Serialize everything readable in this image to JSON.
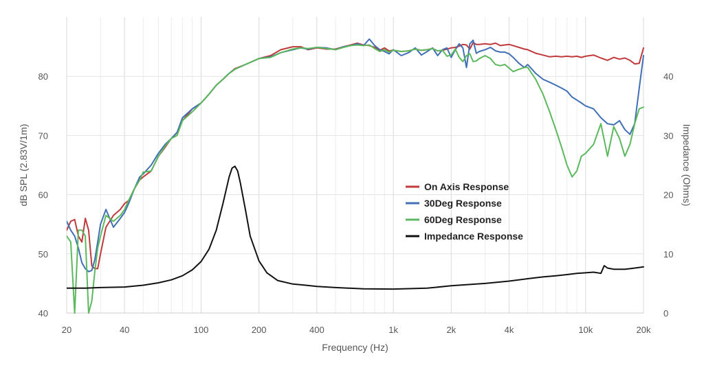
{
  "chart_data": {
    "type": "line",
    "xlabel": "Frequency (Hz)",
    "ylabel": "dB SPL (2.83V/1m)",
    "y2label": "Impedance (Ohms)",
    "xscale": "log",
    "xlim": [
      20,
      20000
    ],
    "ylim": [
      40,
      90
    ],
    "y2lim": [
      0,
      50
    ],
    "x_ticks": [
      20,
      40,
      100,
      200,
      400,
      1000,
      2000,
      4000,
      10000,
      20000
    ],
    "x_tick_labels": [
      "20",
      "40",
      "100",
      "200",
      "400",
      "1k",
      "2k",
      "4k",
      "10k",
      "20k"
    ],
    "y_ticks": [
      40,
      50,
      60,
      70,
      80
    ],
    "y2_ticks": [
      0,
      10,
      20,
      30,
      40
    ],
    "grid": true,
    "legend_position": "center-right",
    "series": [
      {
        "name": "On Axis Response",
        "axis": "left",
        "color": "#c0393b",
        "x": [
          20,
          21,
          22,
          23,
          24,
          25,
          26,
          27,
          28,
          29,
          30,
          32,
          35,
          38,
          40,
          42,
          45,
          48,
          50,
          55,
          60,
          65,
          70,
          75,
          80,
          90,
          100,
          110,
          120,
          130,
          140,
          150,
          170,
          200,
          230,
          260,
          300,
          330,
          360,
          400,
          450,
          500,
          550,
          600,
          650,
          700,
          750,
          800,
          850,
          900,
          950,
          1000,
          1100,
          1200,
          1300,
          1400,
          1500,
          1600,
          1700,
          1800,
          1900,
          2000,
          2100,
          2200,
          2300,
          2400,
          2500,
          2600,
          2700,
          2800,
          3000,
          3200,
          3400,
          3600,
          3800,
          4000,
          4200,
          4500,
          4800,
          5000,
          5500,
          6000,
          6500,
          7000,
          7500,
          8000,
          8500,
          9000,
          9500,
          10000,
          11000,
          12000,
          13000,
          14000,
          15000,
          16000,
          17000,
          18000,
          19000,
          20000
        ],
        "y": [
          54,
          55.5,
          55.8,
          53,
          52,
          56,
          54,
          48,
          47.5,
          47.5,
          50,
          54.5,
          56.5,
          57.5,
          58.5,
          59,
          61,
          62.5,
          63,
          64,
          66.5,
          68,
          69.5,
          70.5,
          72.5,
          74.5,
          75.5,
          77,
          78.5,
          79.5,
          80.5,
          81.3,
          82,
          83,
          83.5,
          84.5,
          85,
          85,
          84.5,
          84.8,
          84.6,
          84.6,
          85,
          85.3,
          85.6,
          85.3,
          85.2,
          84.9,
          84.4,
          84.8,
          84.3,
          84.4,
          84.2,
          84.3,
          84.6,
          84.4,
          84.5,
          84.7,
          84.3,
          84.4,
          84.6,
          84.8,
          84.9,
          85.1,
          85.4,
          85.3,
          84.6,
          85.7,
          85.4,
          85.4,
          85.5,
          85.4,
          85.6,
          85.2,
          85.3,
          85.4,
          85.2,
          84.9,
          84.6,
          84.5,
          83.9,
          83.6,
          83.3,
          83.4,
          83.3,
          83.4,
          83.3,
          83.4,
          83.2,
          83.4,
          83.6,
          83.1,
          82.7,
          83.2,
          82.9,
          83.1,
          82.7,
          82.1,
          82.2,
          84.8
        ]
      },
      {
        "name": "30Deg Response",
        "axis": "left",
        "color": "#3f6fb5",
        "x": [
          20,
          21,
          22,
          23,
          24,
          25,
          26,
          27,
          28,
          29,
          30,
          32,
          35,
          38,
          40,
          42,
          45,
          48,
          50,
          55,
          60,
          65,
          70,
          75,
          80,
          90,
          100,
          110,
          120,
          130,
          140,
          150,
          170,
          200,
          230,
          260,
          300,
          330,
          360,
          400,
          450,
          500,
          550,
          600,
          650,
          700,
          750,
          800,
          850,
          900,
          950,
          1000,
          1100,
          1200,
          1300,
          1400,
          1500,
          1600,
          1700,
          1800,
          1900,
          2000,
          2100,
          2200,
          2300,
          2400,
          2500,
          2600,
          2700,
          2800,
          3000,
          3200,
          3400,
          3600,
          3800,
          4000,
          4200,
          4500,
          4800,
          5000,
          5500,
          6000,
          6500,
          7000,
          7500,
          8000,
          8500,
          9000,
          9500,
          10000,
          11000,
          12000,
          13000,
          14000,
          15000,
          16000,
          17000,
          18000,
          19000,
          20000
        ],
        "y": [
          55.5,
          54,
          53,
          51,
          48.5,
          47.5,
          47,
          47.2,
          49,
          52,
          55,
          57.5,
          54.5,
          56,
          57,
          58.5,
          61,
          63,
          63.5,
          65,
          67,
          68.5,
          69.5,
          70.5,
          73,
          74.5,
          75.5,
          77,
          78.5,
          79.5,
          80.5,
          81.2,
          82,
          83,
          83.3,
          84,
          84.5,
          84.8,
          84.6,
          84.9,
          84.8,
          84.5,
          85,
          85.2,
          85.5,
          85.2,
          86.3,
          85.2,
          84.5,
          84.2,
          83.8,
          84.5,
          83.5,
          84,
          84.8,
          83.6,
          84.2,
          84.8,
          83.5,
          84.5,
          84.8,
          83.2,
          84.5,
          85.5,
          84.8,
          81.5,
          85.5,
          86.1,
          83.9,
          84.2,
          84.5,
          84.9,
          84.3,
          84.1,
          84.1,
          83.8,
          83.2,
          82.2,
          81.5,
          82,
          80.5,
          79.5,
          79,
          78.5,
          78,
          77.5,
          76.5,
          76,
          75.5,
          75,
          74.5,
          73,
          72,
          71.8,
          72.5,
          71,
          70.2,
          72,
          78,
          83.5
        ]
      },
      {
        "name": "60Deg Response",
        "axis": "left",
        "color": "#5cb85c",
        "x": [
          20,
          21,
          22,
          23,
          24,
          25,
          26,
          27,
          28,
          29,
          30,
          32,
          35,
          38,
          40,
          42,
          45,
          48,
          50,
          55,
          60,
          65,
          70,
          75,
          80,
          90,
          100,
          110,
          120,
          130,
          140,
          150,
          170,
          200,
          230,
          260,
          300,
          330,
          360,
          400,
          450,
          500,
          550,
          600,
          650,
          700,
          750,
          800,
          850,
          900,
          950,
          1000,
          1100,
          1200,
          1300,
          1400,
          1500,
          1600,
          1700,
          1800,
          1900,
          2000,
          2100,
          2200,
          2300,
          2400,
          2500,
          2600,
          2700,
          2800,
          3000,
          3200,
          3400,
          3600,
          3800,
          4000,
          4200,
          4500,
          4800,
          5000,
          5500,
          6000,
          6500,
          7000,
          7500,
          8000,
          8500,
          9000,
          9500,
          10000,
          11000,
          12000,
          13000,
          14000,
          15000,
          16000,
          17000,
          18000,
          19000,
          20000
        ],
        "y": [
          53,
          52,
          40,
          54,
          54,
          53,
          40,
          42,
          47,
          51,
          53,
          56.5,
          55.5,
          56.5,
          57.5,
          59,
          61,
          62.5,
          63.8,
          64,
          66.5,
          68.2,
          69.5,
          70,
          72.5,
          74,
          75.5,
          77,
          78.5,
          79.5,
          80.5,
          81.2,
          82,
          83,
          83.2,
          84,
          84.6,
          84.8,
          84.7,
          84.9,
          84.7,
          84.5,
          84.9,
          85.2,
          85.3,
          85.2,
          85.3,
          84.7,
          84.2,
          84.5,
          84.1,
          84.4,
          84.2,
          84.3,
          84.6,
          84.4,
          84.5,
          84.7,
          84.3,
          84.4,
          83.4,
          83.6,
          84.6,
          83.2,
          82.5,
          83.5,
          83.8,
          82.5,
          82.6,
          83,
          83.5,
          83,
          82,
          81.8,
          82,
          81.4,
          80.8,
          81.2,
          81.5,
          81.5,
          79.5,
          77,
          74,
          71,
          68,
          65,
          63,
          64,
          66.5,
          67,
          68.5,
          72,
          66.5,
          71.5,
          69.5,
          66.5,
          68.5,
          72,
          74.5,
          74.8
        ]
      },
      {
        "name": "Impedance Response",
        "axis": "right",
        "color": "#111111",
        "x": [
          20,
          25,
          30,
          40,
          50,
          60,
          70,
          80,
          90,
          100,
          110,
          120,
          130,
          140,
          145,
          150,
          155,
          160,
          170,
          180,
          200,
          220,
          250,
          300,
          350,
          400,
          500,
          700,
          1000,
          1500,
          2000,
          3000,
          4000,
          5000,
          6000,
          7000,
          8000,
          9000,
          10000,
          11000,
          12000,
          12500,
          13000,
          13500,
          14000,
          15000,
          16000,
          17000,
          18000,
          19000,
          20000
        ],
        "y": [
          4.2,
          4.2,
          4.3,
          4.4,
          4.7,
          5.1,
          5.6,
          6.3,
          7.3,
          8.7,
          10.8,
          14,
          18.5,
          23,
          24.5,
          24.8,
          24,
          22,
          17.5,
          13,
          8.8,
          6.8,
          5.5,
          4.9,
          4.7,
          4.5,
          4.3,
          4.1,
          4.05,
          4.2,
          4.6,
          5,
          5.4,
          5.8,
          6.1,
          6.3,
          6.5,
          6.7,
          6.8,
          6.9,
          6.7,
          8,
          7.6,
          7.5,
          7.4,
          7.4,
          7.4,
          7.5,
          7.6,
          7.7,
          7.8
        ]
      }
    ]
  }
}
